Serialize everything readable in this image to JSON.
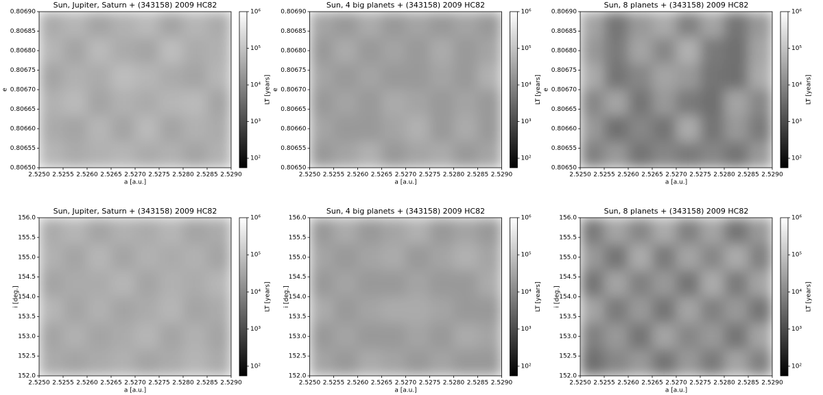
{
  "chart_data": [
    {
      "type": "heatmap",
      "title": "Sun, Jupiter, Saturn + (343158) 2009 HC82",
      "xlabel": "a [a.u.]",
      "ylabel": "e",
      "colorbar_label": "LT [years]",
      "colormap": "gray",
      "color_log": true,
      "xlim": [
        2.525,
        2.529
      ],
      "ylim": [
        0.8065,
        0.8069
      ],
      "clim": [
        55,
        1000000
      ],
      "xticks": [
        {
          "value": 2.525,
          "label": "2.5250"
        },
        {
          "value": 2.5255,
          "label": "2.5255"
        },
        {
          "value": 2.526,
          "label": "2.5260"
        },
        {
          "value": 2.5265,
          "label": "2.5265"
        },
        {
          "value": 2.527,
          "label": "2.5270"
        },
        {
          "value": 2.5275,
          "label": "2.5275"
        },
        {
          "value": 2.528,
          "label": "2.5280"
        },
        {
          "value": 2.5285,
          "label": "2.5285"
        },
        {
          "value": 2.529,
          "label": "2.5290"
        }
      ],
      "yticks": [
        {
          "value": 0.8065,
          "label": "0.80650"
        },
        {
          "value": 0.80655,
          "label": "0.80655"
        },
        {
          "value": 0.8066,
          "label": "0.80660"
        },
        {
          "value": 0.80665,
          "label": "0.80665"
        },
        {
          "value": 0.8067,
          "label": "0.80670"
        },
        {
          "value": 0.80675,
          "label": "0.80675"
        },
        {
          "value": 0.8068,
          "label": "0.80680"
        },
        {
          "value": 0.80685,
          "label": "0.80685"
        },
        {
          "value": 0.8069,
          "label": "0.80690"
        }
      ],
      "cticks": [
        {
          "value": 100,
          "label": "10²"
        },
        {
          "value": 1000,
          "label": "10³"
        },
        {
          "value": 10000,
          "label": "10⁴"
        },
        {
          "value": 100000,
          "label": "10⁵"
        },
        {
          "value": 1000000,
          "label": "10⁶"
        }
      ],
      "z": [
        [
          40000.0,
          60000.0,
          30000.0,
          50000.0,
          70000.0,
          30000.0,
          60000.0,
          40000.0
        ],
        [
          60000.0,
          30000.0,
          70000.0,
          40000.0,
          30000.0,
          80000.0,
          40000.0,
          50000.0
        ],
        [
          30000.0,
          50000.0,
          40000.0,
          80000.0,
          60000.0,
          40000.0,
          30000.0,
          60000.0
        ],
        [
          50000.0,
          70000.0,
          30000.0,
          50000.0,
          40000.0,
          60000.0,
          70000.0,
          30000.0
        ],
        [
          40000.0,
          30000.0,
          60000.0,
          30000.0,
          70000.0,
          30000.0,
          50000.0,
          40000.0
        ],
        [
          60000.0,
          40000.0,
          50000.0,
          60000.0,
          40000.0,
          50000.0,
          30000.0,
          50000.0
        ]
      ]
    },
    {
      "type": "heatmap",
      "title": "Sun, 4 big planets + (343158) 2009 HC82",
      "xlabel": "a [a.u.]",
      "ylabel": "e",
      "colorbar_label": "LT [years]",
      "colormap": "gray",
      "color_log": true,
      "xlim": [
        2.525,
        2.529
      ],
      "ylim": [
        0.8065,
        0.8069
      ],
      "clim": [
        55,
        1000000
      ],
      "xticks": [
        {
          "value": 2.525,
          "label": "2.5250"
        },
        {
          "value": 2.5255,
          "label": "2.5255"
        },
        {
          "value": 2.526,
          "label": "2.5260"
        },
        {
          "value": 2.5265,
          "label": "2.5265"
        },
        {
          "value": 2.527,
          "label": "2.5270"
        },
        {
          "value": 2.5275,
          "label": "2.5275"
        },
        {
          "value": 2.528,
          "label": "2.5280"
        },
        {
          "value": 2.5285,
          "label": "2.5285"
        },
        {
          "value": 2.529,
          "label": "2.5290"
        }
      ],
      "yticks": [
        {
          "value": 0.8065,
          "label": "0.80650"
        },
        {
          "value": 0.80655,
          "label": "0.80655"
        },
        {
          "value": 0.8066,
          "label": "0.80660"
        },
        {
          "value": 0.80665,
          "label": "0.80665"
        },
        {
          "value": 0.8067,
          "label": "0.80670"
        },
        {
          "value": 0.80675,
          "label": "0.80675"
        },
        {
          "value": 0.8068,
          "label": "0.80680"
        },
        {
          "value": 0.80685,
          "label": "0.80685"
        },
        {
          "value": 0.8069,
          "label": "0.80690"
        }
      ],
      "cticks": [
        {
          "value": 100,
          "label": "10²"
        },
        {
          "value": 1000,
          "label": "10³"
        },
        {
          "value": 10000,
          "label": "10⁴"
        },
        {
          "value": 100000,
          "label": "10⁵"
        },
        {
          "value": 1000000,
          "label": "10⁶"
        }
      ],
      "z": [
        [
          30000.0,
          20000.0,
          40000.0,
          20000.0,
          30000.0,
          20000.0,
          30000.0,
          20000.0
        ],
        [
          20000.0,
          40000.0,
          20000.0,
          30000.0,
          20000.0,
          40000.0,
          20000.0,
          30000.0
        ],
        [
          30000.0,
          20000.0,
          30000.0,
          20000.0,
          20000.0,
          30000.0,
          20000.0,
          50000.0
        ],
        [
          20000.0,
          30000.0,
          20000.0,
          40000.0,
          30000.0,
          20000.0,
          30000.0,
          20000.0
        ],
        [
          30000.0,
          20000.0,
          20000.0,
          30000.0,
          50000.0,
          20000.0,
          40000.0,
          20000.0
        ],
        [
          20000.0,
          30000.0,
          50000.0,
          20000.0,
          30000.0,
          40000.0,
          20000.0,
          30000.0
        ]
      ]
    },
    {
      "type": "heatmap",
      "title": "Sun, 8 planets + (343158) 2009 HC82",
      "xlabel": "a [a.u.]",
      "ylabel": "e",
      "colorbar_label": "LT [years]",
      "colormap": "gray",
      "color_log": true,
      "xlim": [
        2.525,
        2.529
      ],
      "ylim": [
        0.8065,
        0.8069
      ],
      "clim": [
        55,
        1000000
      ],
      "xticks": [
        {
          "value": 2.525,
          "label": "2.5250"
        },
        {
          "value": 2.5255,
          "label": "2.5255"
        },
        {
          "value": 2.526,
          "label": "2.5260"
        },
        {
          "value": 2.5265,
          "label": "2.5265"
        },
        {
          "value": 2.527,
          "label": "2.5270"
        },
        {
          "value": 2.5275,
          "label": "2.5275"
        },
        {
          "value": 2.528,
          "label": "2.5280"
        },
        {
          "value": 2.5285,
          "label": "2.5285"
        },
        {
          "value": 2.529,
          "label": "2.5290"
        }
      ],
      "yticks": [
        {
          "value": 0.8065,
          "label": "0.80650"
        },
        {
          "value": 0.80655,
          "label": "0.80655"
        },
        {
          "value": 0.8066,
          "label": "0.80660"
        },
        {
          "value": 0.80665,
          "label": "0.80665"
        },
        {
          "value": 0.8067,
          "label": "0.80670"
        },
        {
          "value": 0.80675,
          "label": "0.80675"
        },
        {
          "value": 0.8068,
          "label": "0.80680"
        },
        {
          "value": 0.80685,
          "label": "0.80685"
        },
        {
          "value": 0.8069,
          "label": "0.80690"
        }
      ],
      "cticks": [
        {
          "value": 100,
          "label": "10²"
        },
        {
          "value": 1000,
          "label": "10³"
        },
        {
          "value": 10000,
          "label": "10⁴"
        },
        {
          "value": 100000,
          "label": "10⁵"
        },
        {
          "value": 1000000,
          "label": "10⁶"
        }
      ],
      "z": [
        [
          30000.0,
          5000.0,
          20000.0,
          40000.0,
          8000.0,
          30000.0,
          5000.0,
          20000.0
        ],
        [
          20000.0,
          6000.0,
          30000.0,
          10000.0,
          50000.0,
          6000.0,
          4000.0,
          30000.0
        ],
        [
          40000.0,
          5000.0,
          10000.0,
          30000.0,
          20000.0,
          5000.0,
          4000.0,
          40000.0
        ],
        [
          10000.0,
          30000.0,
          5000.0,
          20000.0,
          6000.0,
          4000.0,
          30000.0,
          10000.0
        ],
        [
          20000.0,
          4000.0,
          10000.0,
          5000.0,
          40000.0,
          5000.0,
          20000.0,
          6000.0
        ],
        [
          8000.0,
          20000.0,
          5000.0,
          10000.0,
          6000.0,
          10000.0,
          5000.0,
          20000.0
        ]
      ]
    },
    {
      "type": "heatmap",
      "title": "Sun, Jupiter, Saturn + (343158) 2009 HC82",
      "xlabel": "a [a.u.]",
      "ylabel": "i [deg.]",
      "colorbar_label": "LT [years]",
      "colormap": "gray",
      "color_log": true,
      "xlim": [
        2.525,
        2.529
      ],
      "ylim": [
        152,
        156
      ],
      "clim": [
        55,
        1000000
      ],
      "xticks": [
        {
          "value": 2.525,
          "label": "2.5250"
        },
        {
          "value": 2.5255,
          "label": "2.5255"
        },
        {
          "value": 2.526,
          "label": "2.5260"
        },
        {
          "value": 2.5265,
          "label": "2.5265"
        },
        {
          "value": 2.527,
          "label": "2.5270"
        },
        {
          "value": 2.5275,
          "label": "2.5275"
        },
        {
          "value": 2.528,
          "label": "2.5280"
        },
        {
          "value": 2.5285,
          "label": "2.5285"
        },
        {
          "value": 2.529,
          "label": "2.5290"
        }
      ],
      "yticks": [
        {
          "value": 152,
          "label": "152.0"
        },
        152.5,
        {
          "value": 153,
          "label": "153.0"
        },
        153.5,
        {
          "value": 154,
          "label": "154.0"
        },
        154.5,
        {
          "value": 155,
          "label": "155.0"
        },
        155.5,
        {
          "value": 156,
          "label": "156.0"
        }
      ],
      "cticks": [
        {
          "value": 100,
          "label": "10²"
        },
        {
          "value": 1000,
          "label": "10³"
        },
        {
          "value": 10000,
          "label": "10⁴"
        },
        {
          "value": 100000,
          "label": "10⁵"
        },
        {
          "value": 1000000,
          "label": "10⁶"
        }
      ],
      "z": [
        [
          40000.0,
          60000.0,
          30000.0,
          50000.0,
          40000.0,
          60000.0,
          30000.0,
          40000.0
        ],
        [
          50000.0,
          30000.0,
          60000.0,
          30000.0,
          50000.0,
          40000.0,
          50000.0,
          30000.0
        ],
        [
          30000.0,
          40000.0,
          40000.0,
          60000.0,
          30000.0,
          50000.0,
          40000.0,
          60000.0
        ],
        [
          60000.0,
          30000.0,
          50000.0,
          30000.0,
          40000.0,
          60000.0,
          30000.0,
          40000.0
        ],
        [
          30000.0,
          50000.0,
          30000.0,
          40000.0,
          60000.0,
          30000.0,
          50000.0,
          30000.0
        ],
        [
          40000.0,
          30000.0,
          40000.0,
          50000.0,
          30000.0,
          40000.0,
          60000.0,
          40000.0
        ]
      ]
    },
    {
      "type": "heatmap",
      "title": "Sun, 4 big planets + (343158) 2009 HC82",
      "xlabel": "a [a.u.]",
      "ylabel": "i [deg.]",
      "colorbar_label": "LT [years]",
      "colormap": "gray",
      "color_log": true,
      "xlim": [
        2.525,
        2.529
      ],
      "ylim": [
        152,
        156
      ],
      "clim": [
        55,
        1000000
      ],
      "xticks": [
        {
          "value": 2.525,
          "label": "2.5250"
        },
        {
          "value": 2.5255,
          "label": "2.5255"
        },
        {
          "value": 2.526,
          "label": "2.5260"
        },
        {
          "value": 2.5265,
          "label": "2.5265"
        },
        {
          "value": 2.527,
          "label": "2.5270"
        },
        {
          "value": 2.5275,
          "label": "2.5275"
        },
        {
          "value": 2.528,
          "label": "2.5280"
        },
        {
          "value": 2.5285,
          "label": "2.5285"
        },
        {
          "value": 2.529,
          "label": "2.5290"
        }
      ],
      "yticks": [
        {
          "value": 152,
          "label": "152.0"
        },
        152.5,
        {
          "value": 153,
          "label": "153.0"
        },
        153.5,
        {
          "value": 154,
          "label": "154.0"
        },
        154.5,
        {
          "value": 155,
          "label": "155.0"
        },
        155.5,
        {
          "value": 156,
          "label": "156.0"
        }
      ],
      "cticks": [
        {
          "value": 100,
          "label": "10²"
        },
        {
          "value": 1000,
          "label": "10³"
        },
        {
          "value": 10000,
          "label": "10⁴"
        },
        {
          "value": 100000,
          "label": "10⁵"
        },
        {
          "value": 1000000,
          "label": "10⁶"
        }
      ],
      "z": [
        [
          20000.0,
          40000.0,
          20000.0,
          30000.0,
          50000.0,
          20000.0,
          30000.0,
          20000.0
        ],
        [
          30000.0,
          20000.0,
          30000.0,
          40000.0,
          20000.0,
          30000.0,
          50000.0,
          30000.0
        ],
        [
          20000.0,
          30000.0,
          20000.0,
          20000.0,
          30000.0,
          20000.0,
          20000.0,
          40000.0
        ],
        [
          40000.0,
          20000.0,
          30000.0,
          40000.0,
          40000.0,
          30000.0,
          20000.0,
          20000.0
        ],
        [
          20000.0,
          30000.0,
          20000.0,
          20000.0,
          30000.0,
          20000.0,
          40000.0,
          30000.0
        ],
        [
          30000.0,
          20000.0,
          40000.0,
          30000.0,
          20000.0,
          30000.0,
          20000.0,
          20000.0
        ]
      ]
    },
    {
      "type": "heatmap",
      "title": "Sun, 8 planets + (343158) 2009 HC82",
      "xlabel": "a [a.u.]",
      "ylabel": "i [deg.]",
      "colorbar_label": "LT [years]",
      "colormap": "gray",
      "color_log": true,
      "xlim": [
        2.525,
        2.529
      ],
      "ylim": [
        152,
        156
      ],
      "clim": [
        55,
        1000000
      ],
      "xticks": [
        {
          "value": 2.525,
          "label": "2.5250"
        },
        {
          "value": 2.5255,
          "label": "2.5255"
        },
        {
          "value": 2.526,
          "label": "2.5260"
        },
        {
          "value": 2.5265,
          "label": "2.5265"
        },
        {
          "value": 2.527,
          "label": "2.5270"
        },
        {
          "value": 2.5275,
          "label": "2.5275"
        },
        {
          "value": 2.528,
          "label": "2.5280"
        },
        {
          "value": 2.5285,
          "label": "2.5285"
        },
        {
          "value": 2.529,
          "label": "2.5290"
        }
      ],
      "yticks": [
        {
          "value": 152,
          "label": "152.0"
        },
        152.5,
        {
          "value": 153,
          "label": "153.0"
        },
        153.5,
        {
          "value": 154,
          "label": "154.0"
        },
        154.5,
        {
          "value": 155,
          "label": "155.0"
        },
        155.5,
        {
          "value": 156,
          "label": "156.0"
        }
      ],
      "cticks": [
        {
          "value": 100,
          "label": "10²"
        },
        {
          "value": 1000,
          "label": "10³"
        },
        {
          "value": 10000,
          "label": "10⁴"
        },
        {
          "value": 100000,
          "label": "10⁵"
        },
        {
          "value": 1000000,
          "label": "10⁶"
        }
      ],
      "z": [
        [
          6000.0,
          30000.0,
          10000.0,
          40000.0,
          8000.0,
          30000.0,
          5000.0,
          20000.0
        ],
        [
          20000.0,
          5000.0,
          40000.0,
          6000.0,
          30000.0,
          10000.0,
          40000.0,
          8000.0
        ],
        [
          5000.0,
          30000.0,
          8000.0,
          20000.0,
          5000.0,
          40000.0,
          6000.0,
          30000.0
        ],
        [
          30000.0,
          6000.0,
          20000.0,
          5000.0,
          30000.0,
          8000.0,
          20000.0,
          5000.0
        ],
        [
          8000.0,
          20000.0,
          5000.0,
          30000.0,
          10000.0,
          20000.0,
          5000.0,
          30000.0
        ],
        [
          4000.0,
          10000.0,
          20000.0,
          5000.0,
          20000.0,
          6000.0,
          30000.0,
          8000.0
        ]
      ]
    }
  ]
}
